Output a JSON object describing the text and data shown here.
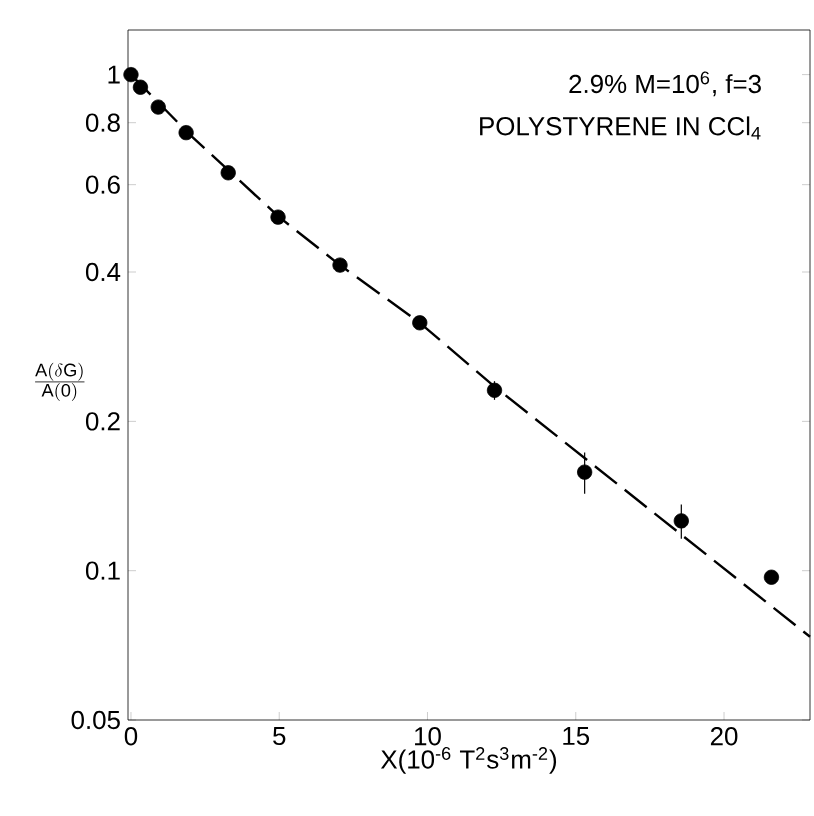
{
  "chart_data": {
    "type": "scatter",
    "ylabel": "\\frac{\\mathrm{A(\\delta G)}}{\\mathrm{A(0)}}",
    "xlabel": "X(10$^{-6}$ T$^{2}$s$^{3}$m$^{-2}$)",
    "annotations": [
      "2.9% M=10$^{6}$, f=3",
      "POLYSTYRENE IN CCl$_{4}$"
    ],
    "log": "y",
    "xlim": [
      -0.1,
      22.9
    ],
    "ylim": [
      0.05,
      1.23
    ],
    "xticks": [
      0,
      5,
      10,
      15,
      20
    ],
    "yticks": [
      0.05,
      0.1,
      0.2,
      0.4,
      0.6,
      0.8,
      1
    ],
    "grid": false,
    "series": [
      {
        "color": "#000000",
        "marker": "circle",
        "x": [
          0,
          0.32,
          0.92,
          1.86,
          3.28,
          4.96,
          7.05,
          9.74,
          12.26,
          15.3,
          18.56,
          21.6
        ],
        "values": [
          1.0,
          0.943,
          0.86,
          0.764,
          0.634,
          0.516,
          0.413,
          0.316,
          0.231,
          0.158,
          0.126,
          0.097
        ],
        "errors": [
          null,
          null,
          null,
          null,
          null,
          null,
          null,
          null,
          0.01,
          0.015,
          0.01,
          null
        ]
      },
      {
        "type": "line",
        "color": "#000000",
        "marker": "none",
        "line_style": "dashed",
        "x": [
          0,
          2,
          5,
          7.05,
          9.74,
          12.26,
          22.9
        ],
        "values": [
          1.0,
          0.755,
          0.516,
          0.413,
          0.316,
          0.235,
          0.0736
        ]
      }
    ]
  }
}
